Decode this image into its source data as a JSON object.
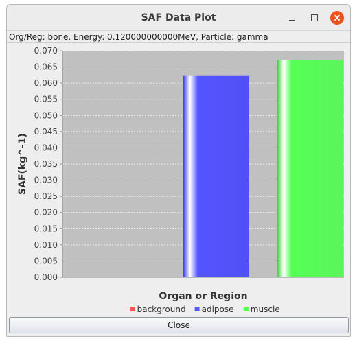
{
  "window": {
    "title": "SAF Data Plot"
  },
  "info_text": "Org/Reg: bone, Energy: 0.120000000000MeV, Particle: gamma",
  "close_label": "Close",
  "chart_data": {
    "type": "bar",
    "categories": [
      "background",
      "adipose",
      "muscle"
    ],
    "values": [
      0.0,
      0.0622,
      0.0672
    ],
    "colors": [
      "#ff5555",
      "#5555ff",
      "#55ff55"
    ],
    "xlabel": "Organ or Region",
    "ylabel": "SAF(kg^-1)",
    "ylim": [
      0.0,
      0.07
    ],
    "yticks": [
      "0.000",
      "0.005",
      "0.010",
      "0.015",
      "0.020",
      "0.025",
      "0.030",
      "0.035",
      "0.040",
      "0.045",
      "0.050",
      "0.055",
      "0.060",
      "0.065",
      "0.070"
    ],
    "grid": true,
    "legend": "bottom",
    "legend_entries": [
      "background",
      "adipose",
      "muscle"
    ]
  }
}
